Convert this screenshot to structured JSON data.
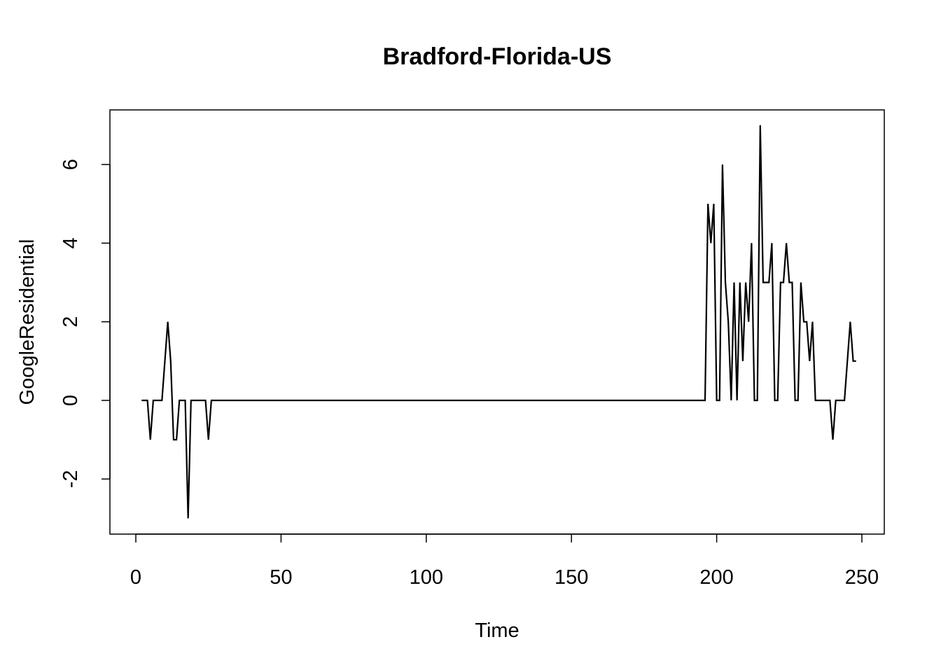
{
  "chart_data": {
    "type": "line",
    "title": "Bradford-Florida-US",
    "xlabel": "Time",
    "ylabel": "GoogleResidential",
    "xlim": [
      0,
      250
    ],
    "ylim": [
      -3,
      7
    ],
    "x_ticks": [
      0,
      50,
      100,
      150,
      200,
      250
    ],
    "y_ticks": [
      -2,
      0,
      2,
      4,
      6
    ],
    "grid": false,
    "series": [
      {
        "color": "#000000",
        "x": [
          2,
          3,
          4,
          5,
          6,
          7,
          8,
          9,
          10,
          11,
          12,
          13,
          14,
          15,
          16,
          17,
          18,
          19,
          20,
          21,
          22,
          23,
          24,
          25,
          26,
          27,
          196,
          197,
          198,
          199,
          200,
          201,
          202,
          203,
          204,
          205,
          206,
          207,
          208,
          209,
          210,
          211,
          212,
          213,
          214,
          215,
          216,
          217,
          218,
          219,
          220,
          221,
          222,
          223,
          224,
          225,
          226,
          227,
          228,
          229,
          230,
          231,
          232,
          233,
          234,
          235,
          236,
          237,
          238,
          239,
          240,
          241,
          242,
          243,
          244,
          245,
          246,
          247,
          248
        ],
        "values": [
          0,
          0,
          0,
          -1,
          0,
          0,
          0,
          0,
          1,
          2,
          1,
          -1,
          -1,
          0,
          0,
          0,
          -3,
          0,
          0,
          0,
          0,
          0,
          0,
          -1,
          0,
          0,
          0,
          5,
          4,
          5,
          0,
          0,
          6,
          3,
          2,
          0,
          3,
          0,
          3,
          1,
          3,
          2,
          4,
          0,
          0,
          7,
          3,
          3,
          3,
          4,
          0,
          0,
          3,
          3,
          4,
          3,
          3,
          0,
          0,
          3,
          2,
          2,
          1,
          2,
          0,
          0,
          0,
          0,
          0,
          0,
          -1,
          0,
          0,
          0,
          0,
          1,
          2,
          1,
          1
        ]
      }
    ]
  }
}
